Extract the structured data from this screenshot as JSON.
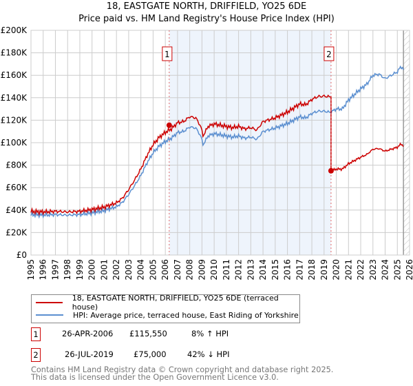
{
  "title": "18, EASTGATE NORTH, DRIFFIELD, YO25 6DE",
  "subtitle": "Price paid vs. HM Land Registry's House Price Index (HPI)",
  "chart_data": {
    "type": "line",
    "title": "18, EASTGATE NORTH, DRIFFIELD, YO25 6DE",
    "subtitle": "Price paid vs. HM Land Registry's House Price Index (HPI)",
    "xlim": [
      1995,
      2026
    ],
    "ylim": [
      0,
      200000
    ],
    "y_ticks": [
      "£0",
      "£20K",
      "£40K",
      "£60K",
      "£80K",
      "£100K",
      "£120K",
      "£140K",
      "£160K",
      "£180K",
      "£200K"
    ],
    "x_ticks": [
      "1995",
      "1996",
      "1997",
      "1998",
      "1999",
      "2000",
      "2001",
      "2002",
      "2003",
      "2004",
      "2005",
      "2006",
      "2007",
      "2008",
      "2009",
      "2010",
      "2011",
      "2012",
      "2013",
      "2014",
      "2015",
      "2016",
      "2017",
      "2018",
      "2019",
      "2020",
      "2021",
      "2022",
      "2023",
      "2024",
      "2025",
      "2026"
    ],
    "grid": true,
    "hpi_series": {
      "name": "HPI: Average price, terraced house, East Riding of Yorkshire",
      "color": "#5b8fd0",
      "x": [
        1995,
        1996,
        1997,
        1998,
        1999,
        2000,
        2001,
        2002,
        2002.5,
        2003,
        2003.5,
        2004,
        2004.5,
        2005,
        2005.5,
        2006,
        2006.5,
        2007,
        2007.5,
        2008,
        2008.5,
        2008.9,
        2009.1,
        2009.5,
        2010,
        2010.5,
        2011,
        2011.5,
        2012,
        2012.5,
        2013,
        2013.5,
        2014,
        2015,
        2015.5,
        2016,
        2017,
        2017.5,
        2018,
        2018.5,
        2019,
        2019.5,
        2020,
        2020.5,
        2021,
        2021.5,
        2022,
        2022.5,
        2023,
        2023.5,
        2024,
        2024.5,
        2025,
        2025.3,
        2025.5
      ],
      "y": [
        36000,
        35500,
        36000,
        35500,
        36000,
        37500,
        39500,
        43000,
        47000,
        54000,
        62000,
        71000,
        82000,
        91000,
        97000,
        101000,
        104000,
        109000,
        110000,
        114000,
        113000,
        106000,
        98000,
        106000,
        108000,
        107000,
        106000,
        105000,
        106000,
        104000,
        105000,
        103000,
        110000,
        113000,
        115000,
        117000,
        123000,
        122000,
        126000,
        128000,
        128000,
        127000,
        130000,
        130000,
        138000,
        143000,
        148000,
        152000,
        160000,
        161000,
        157000,
        160000,
        163000,
        168000,
        165000
      ]
    },
    "price_series": {
      "name": "18, EASTGATE NORTH, DRIFFIELD, YO25 6DE (terraced house)",
      "color": "#cc0000"
    },
    "sales": [
      {
        "id": "1",
        "year": 2006.32,
        "price": 115550
      },
      {
        "id": "2",
        "year": 2019.57,
        "price": 75000
      }
    ],
    "projection_from": 2025.5
  },
  "legend": {
    "price_label": "18, EASTGATE NORTH, DRIFFIELD, YO25 6DE (terraced house)",
    "hpi_label": "HPI: Average price, terraced house, East Riding of Yorkshire"
  },
  "sales_table": [
    {
      "num": "1",
      "date": "26-APR-2006",
      "price": "£115,550",
      "hpi": "8% ↑ HPI"
    },
    {
      "num": "2",
      "date": "26-JUL-2019",
      "price": "£75,000",
      "hpi": "42% ↓ HPI"
    }
  ],
  "footer": [
    "Contains HM Land Registry data © Crown copyright and database right 2025.",
    "This data is licensed under the Open Government Licence v3.0."
  ]
}
